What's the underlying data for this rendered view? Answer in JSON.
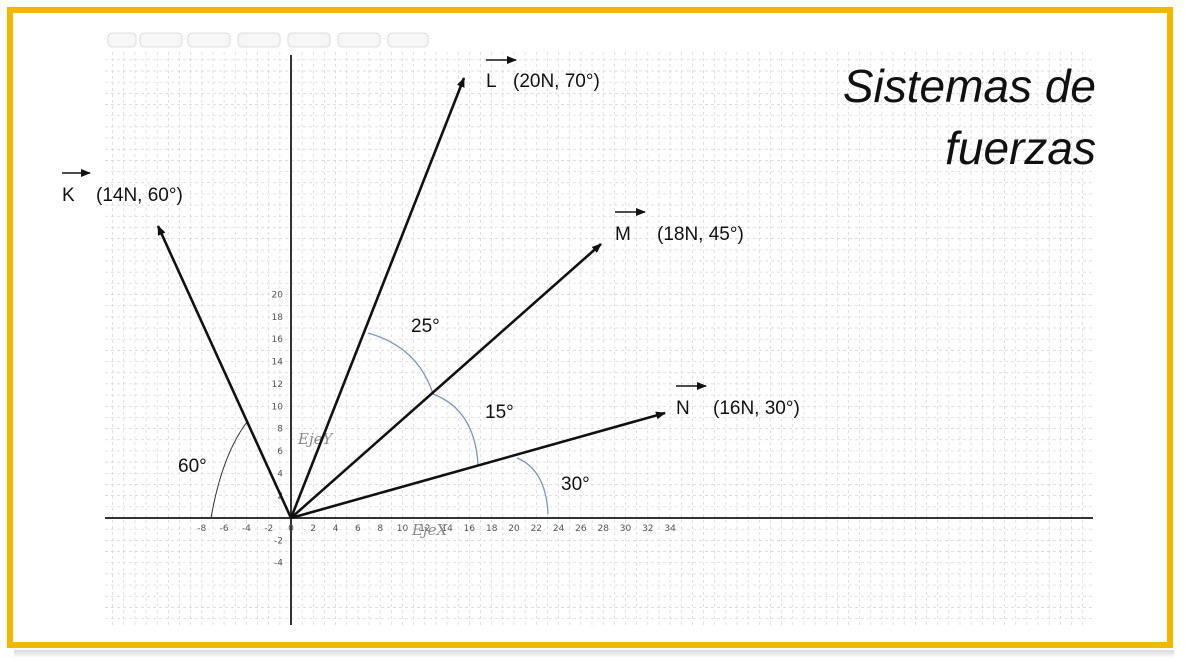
{
  "title_line1": "Sistemas de",
  "title_line2": "fuerzas",
  "axis_x_name": "EjeX",
  "axis_y_name": "EjeY",
  "x_ticks": [
    "-8",
    "-6",
    "-4",
    "-2",
    "0",
    "2",
    "4",
    "6",
    "8",
    "10",
    "12",
    "14",
    "16",
    "18",
    "20",
    "22",
    "24",
    "26",
    "28",
    "30",
    "32",
    "34"
  ],
  "y_ticks": [
    "20",
    "18",
    "16",
    "14",
    "12",
    "10",
    "8",
    "6",
    "4",
    "2",
    "-2",
    "-4"
  ],
  "vectors": [
    {
      "name": "K",
      "label": "(14N, 60°)",
      "magnitude": 14,
      "angle": 120
    },
    {
      "name": "L",
      "label": "(20N, 70°)",
      "magnitude": 20,
      "angle": 70
    },
    {
      "name": "M",
      "label": "(18N, 45°)",
      "magnitude": 18,
      "angle": 45
    },
    {
      "name": "N",
      "label": "(16N, 30°)",
      "magnitude": 16,
      "angle": 30
    }
  ],
  "angles": {
    "k_x": "60°",
    "l_m": "25°",
    "m_n": "15°",
    "n_x": "30°"
  },
  "colors": {
    "frame": "#f2b800",
    "arc_blue": "#7a97c4",
    "grid": "#d4d4d4"
  }
}
